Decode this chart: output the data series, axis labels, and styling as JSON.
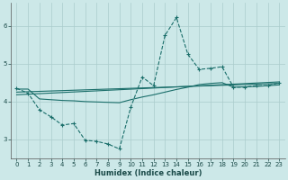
{
  "xlabel": "Humidex (Indice chaleur)",
  "bg_color": "#cce8e8",
  "grid_color": "#aacccc",
  "line_color": "#1a6e6a",
  "xlim": [
    -0.5,
    23.5
  ],
  "ylim": [
    2.5,
    6.6
  ],
  "yticks": [
    3,
    4,
    5,
    6
  ],
  "xticks": [
    0,
    1,
    2,
    3,
    4,
    5,
    6,
    7,
    8,
    9,
    10,
    11,
    12,
    13,
    14,
    15,
    16,
    17,
    18,
    19,
    20,
    21,
    22,
    23
  ],
  "line1_x": [
    0,
    1,
    2,
    3,
    4,
    5,
    6,
    7,
    8,
    9,
    10,
    11,
    12,
    13,
    14,
    15,
    16,
    17,
    18,
    19,
    20,
    21,
    22,
    23
  ],
  "line1_y": [
    4.35,
    4.22,
    3.78,
    3.6,
    3.38,
    3.42,
    2.98,
    2.95,
    2.88,
    2.75,
    3.85,
    4.65,
    4.42,
    5.75,
    6.22,
    5.25,
    4.85,
    4.88,
    4.92,
    4.38,
    4.38,
    4.42,
    4.42,
    4.5
  ],
  "line2_x": [
    0,
    1,
    2,
    3,
    4,
    5,
    6,
    7,
    8,
    9,
    10,
    11,
    12,
    13,
    14,
    15,
    16,
    17,
    18,
    19,
    20,
    21,
    22,
    23
  ],
  "line2_y": [
    4.33,
    4.33,
    4.07,
    4.05,
    4.03,
    4.02,
    4.0,
    3.99,
    3.98,
    3.97,
    4.05,
    4.12,
    4.18,
    4.25,
    4.32,
    4.38,
    4.45,
    4.48,
    4.5,
    4.38,
    4.39,
    4.4,
    4.42,
    4.44
  ],
  "line3_x": [
    0,
    23
  ],
  "line3_y": [
    4.25,
    4.48
  ],
  "line4_x": [
    0,
    23
  ],
  "line4_y": [
    4.18,
    4.52
  ]
}
